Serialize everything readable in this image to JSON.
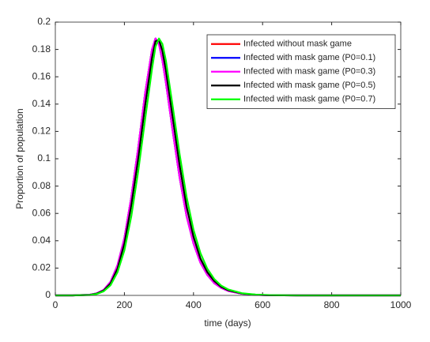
{
  "chart_data": {
    "type": "line",
    "xlabel": "time (days)",
    "ylabel": "Proportion of population",
    "x": [
      0,
      50,
      100,
      120,
      140,
      160,
      180,
      200,
      220,
      240,
      260,
      280,
      290,
      300,
      310,
      320,
      340,
      360,
      380,
      400,
      420,
      440,
      460,
      480,
      500,
      540,
      580,
      620,
      700,
      800,
      900,
      1000
    ],
    "series": [
      {
        "name": "Infected without mask game",
        "color": "#ff0000",
        "values": [
          0,
          0,
          0.0005,
          0.0015,
          0.004,
          0.01,
          0.022,
          0.042,
          0.072,
          0.108,
          0.148,
          0.18,
          0.188,
          0.184,
          0.172,
          0.156,
          0.12,
          0.086,
          0.058,
          0.038,
          0.024,
          0.015,
          0.009,
          0.0055,
          0.0033,
          0.0012,
          0.0004,
          0.0001,
          0,
          0,
          0,
          0
        ]
      },
      {
        "name": "Infected with mask game (P0=0.1)",
        "color": "#0000ff",
        "values": [
          0,
          0,
          0.0005,
          0.0015,
          0.004,
          0.01,
          0.022,
          0.042,
          0.072,
          0.108,
          0.148,
          0.18,
          0.188,
          0.184,
          0.172,
          0.156,
          0.12,
          0.086,
          0.058,
          0.038,
          0.024,
          0.015,
          0.009,
          0.0055,
          0.0033,
          0.0012,
          0.0004,
          0.0001,
          0,
          0,
          0,
          0
        ]
      },
      {
        "name": "Infected with mask game (P0=0.3)",
        "color": "#ff00ff",
        "values": [
          0,
          0,
          0.0005,
          0.0015,
          0.004,
          0.01,
          0.022,
          0.042,
          0.072,
          0.108,
          0.148,
          0.18,
          0.188,
          0.184,
          0.172,
          0.156,
          0.12,
          0.086,
          0.058,
          0.038,
          0.024,
          0.015,
          0.009,
          0.0055,
          0.0033,
          0.0012,
          0.0004,
          0.0001,
          0,
          0,
          0,
          0
        ]
      },
      {
        "name": "Infected with mask game (P0=0.5)",
        "color": "#000000",
        "values": [
          0,
          0,
          0.0004,
          0.0013,
          0.0035,
          0.0088,
          0.0195,
          0.038,
          0.066,
          0.1,
          0.139,
          0.174,
          0.186,
          0.187,
          0.179,
          0.165,
          0.13,
          0.095,
          0.065,
          0.043,
          0.027,
          0.017,
          0.0105,
          0.0063,
          0.0038,
          0.0014,
          0.0005,
          0.0001,
          0,
          0,
          0,
          0
        ]
      },
      {
        "name": "Infected with mask game (P0=0.7)",
        "color": "#00ff00",
        "values": [
          0,
          0,
          0.0003,
          0.001,
          0.003,
          0.0075,
          0.017,
          0.033,
          0.058,
          0.091,
          0.129,
          0.166,
          0.182,
          0.188,
          0.184,
          0.172,
          0.138,
          0.103,
          0.072,
          0.048,
          0.031,
          0.0195,
          0.012,
          0.0072,
          0.0044,
          0.0016,
          0.0006,
          0.0002,
          0,
          0,
          0,
          0
        ]
      }
    ],
    "xlim": [
      0,
      1000
    ],
    "xticks": [
      0,
      200,
      400,
      600,
      800,
      1000
    ],
    "ylim": [
      0,
      0.2
    ],
    "yticks": [
      0,
      0.02,
      0.04,
      0.06,
      0.08,
      0.1,
      0.12,
      0.14,
      0.16,
      0.18,
      0.2
    ],
    "grid": false,
    "legend": "northeast"
  }
}
